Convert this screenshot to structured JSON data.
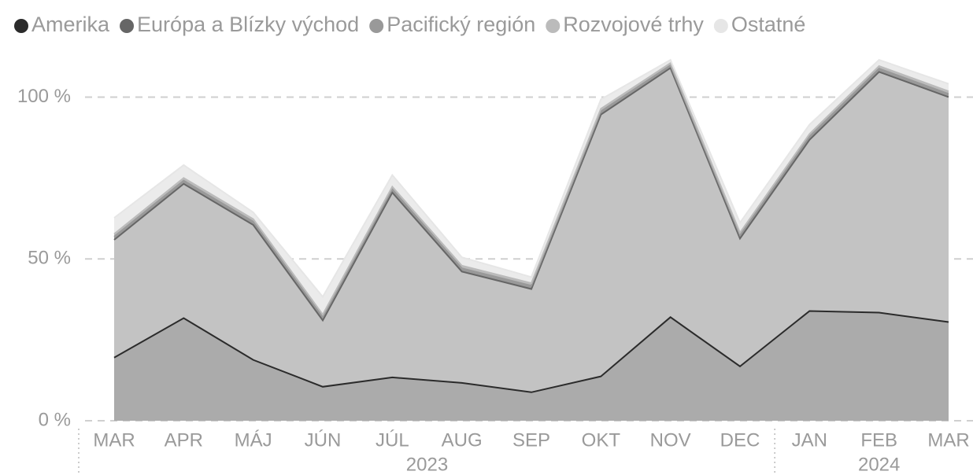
{
  "chart_data": {
    "type": "stacked-area",
    "categories": [
      "MAR",
      "APR",
      "MÁJ",
      "JÚN",
      "JÚL",
      "AUG",
      "SEP",
      "OKT",
      "NOV",
      "DEC",
      "JAN",
      "FEB",
      "MAR"
    ],
    "years": [
      "2023",
      null,
      null,
      null,
      null,
      null,
      null,
      null,
      null,
      null,
      "2024",
      null,
      null
    ],
    "series": [
      {
        "name": "Amerika",
        "color": "#2b2b2b",
        "fill": "#ababab",
        "values": [
          19.5,
          31.7,
          18.8,
          10.5,
          13.4,
          11.7,
          8.8,
          13.7,
          32,
          16.8,
          33.9,
          33.4,
          30.5
        ]
      },
      {
        "name": "Európa a Blízky východ",
        "color": "#666666",
        "fill": "#c3c3c3",
        "values": [
          36.4,
          41.5,
          41.7,
          20.5,
          57.1,
          34.4,
          31.9,
          80.9,
          77,
          39.5,
          52.9,
          74.4,
          69.5
        ]
      },
      {
        "name": "Pacifický región",
        "color": "#999999",
        "fill": "#999999",
        "values": [
          1,
          1,
          1,
          1,
          1,
          1,
          1,
          1,
          0.8,
          1,
          1,
          1,
          1
        ]
      },
      {
        "name": "Rozvojové trhy",
        "color": "#bbbbbb",
        "fill": "#bbbbbb",
        "values": [
          0.8,
          0.8,
          0.8,
          0.8,
          0.8,
          0.8,
          0.8,
          0.8,
          0.7,
          0.8,
          0.8,
          0.8,
          0.8
        ]
      },
      {
        "name": "Ostatné",
        "color": "#e6e6e6",
        "fill": "#ebebeb",
        "values": [
          5,
          4,
          2.1,
          5.5,
          3.6,
          2.6,
          1.9,
          2.9,
          1,
          3.1,
          2.9,
          1.9,
          2.3
        ]
      }
    ],
    "ylim": [
      0,
      113
    ],
    "yticks": [
      {
        "value": 0,
        "label": "0 %"
      },
      {
        "value": 50,
        "label": "50 %"
      },
      {
        "value": 100,
        "label": "100 %"
      }
    ],
    "grid": true,
    "legend": "top-left"
  }
}
